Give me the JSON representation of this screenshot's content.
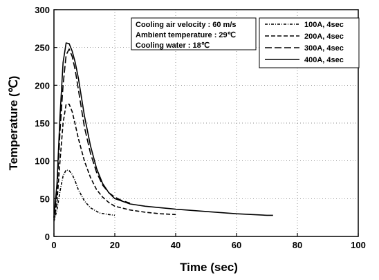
{
  "chart_data": {
    "type": "line",
    "title": "",
    "xlabel": "Time (sec)",
    "ylabel": "Temperature (℃)",
    "xlim": [
      0,
      100
    ],
    "ylim": [
      0,
      300
    ],
    "xticks": [
      0,
      20,
      40,
      60,
      80,
      100
    ],
    "yticks": [
      0,
      50,
      100,
      150,
      200,
      250,
      300
    ],
    "grid": "dotted",
    "legend_position": "top-right",
    "annotations": [
      "Cooling air velocity : 60 m/s",
      "Ambient temperature : 29℃",
      "Cooling water : 18℃"
    ],
    "series": [
      {
        "name": "100A, 4sec",
        "dash": "4,2,1,2",
        "x": [
          0,
          1,
          2,
          3,
          4,
          5,
          6,
          7,
          8,
          10,
          12,
          15,
          18,
          20
        ],
        "y": [
          20,
          35,
          60,
          80,
          88,
          87,
          82,
          73,
          62,
          47,
          38,
          31,
          29,
          28
        ]
      },
      {
        "name": "200A, 4sec",
        "dash": "6,3",
        "x": [
          0,
          1,
          2,
          3,
          4,
          5,
          6,
          7,
          8,
          10,
          12,
          14,
          16,
          18,
          20,
          25,
          30,
          35,
          40
        ],
        "y": [
          22,
          45,
          100,
          150,
          175,
          175,
          165,
          148,
          130,
          100,
          78,
          62,
          52,
          45,
          40,
          35,
          32,
          30,
          29
        ]
      },
      {
        "name": "300A, 4sec",
        "dash": "10,4",
        "x": [
          0,
          1,
          2,
          3,
          4,
          5,
          6,
          7,
          8,
          9,
          10,
          12,
          14,
          16,
          18,
          20,
          22,
          25
        ],
        "y": [
          25,
          60,
          140,
          200,
          240,
          248,
          238,
          220,
          195,
          170,
          145,
          110,
          85,
          68,
          58,
          52,
          48,
          44
        ]
      },
      {
        "name": "400A, 4sec",
        "dash": "",
        "x": [
          0,
          1,
          2,
          3,
          4,
          5,
          6,
          7,
          8,
          9,
          10,
          12,
          14,
          16,
          18,
          20,
          25,
          30,
          40,
          50,
          60,
          70,
          72
        ],
        "y": [
          25,
          70,
          160,
          230,
          256,
          255,
          245,
          230,
          210,
          185,
          160,
          120,
          90,
          70,
          58,
          50,
          43,
          40,
          36,
          33,
          30,
          28,
          28
        ]
      }
    ]
  }
}
